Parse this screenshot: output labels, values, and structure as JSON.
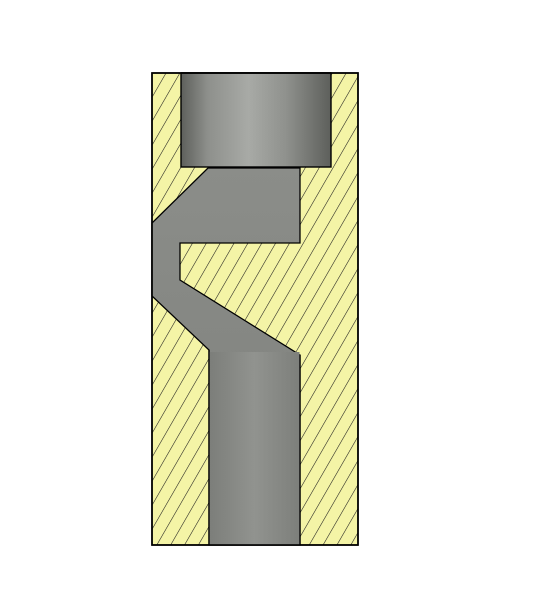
{
  "drawing": {
    "view": "section-view",
    "background_color": "#ffffff",
    "hatch_fill_color": "#f4f4a6",
    "hatch_line_color": "#1a1a1a",
    "outline_color": "#000000",
    "bore_color_dark": "#6f716d",
    "bore_color_light": "#a3a5a1",
    "channel_color": "#8a8c88"
  }
}
